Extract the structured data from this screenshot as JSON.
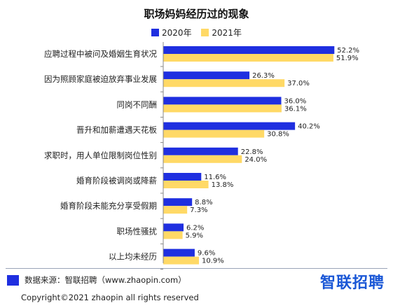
{
  "chart_data": {
    "type": "bar",
    "orientation": "horizontal",
    "title": "职场妈妈经历过的现象",
    "categories": [
      "应聘过程中被问及婚姻生育状况",
      "因为照顾家庭被迫放弃事业发展",
      "同岗不同酬",
      "晋升和加薪遭遇天花板",
      "求职时，用人单位限制岗位性别",
      "婚育阶段被调岗或降薪",
      "婚育阶段未能充分享受假期",
      "职场性骚扰",
      "以上均未经历"
    ],
    "series": [
      {
        "name": "2020年",
        "color": "#1f2fe0",
        "values": [
          52.2,
          26.3,
          36.0,
          40.2,
          22.8,
          11.6,
          8.8,
          6.2,
          9.6
        ],
        "labels": [
          "52.2%",
          "26.3%",
          "36.0%",
          "40.2%",
          "22.8%",
          "11.6%",
          "8.8%",
          "6.2%",
          "9.6%"
        ]
      },
      {
        "name": "2021年",
        "color": "#ffd966",
        "values": [
          51.9,
          37.0,
          36.1,
          30.8,
          24.0,
          13.8,
          7.3,
          5.9,
          10.9
        ],
        "labels": [
          "51.9%",
          "37.0%",
          "36.1%",
          "30.8%",
          "24.0%",
          "13.8%",
          "7.3%",
          "5.9%",
          "10.9%"
        ]
      }
    ],
    "xlim": [
      0,
      60
    ],
    "grid": false,
    "legend_position": "top-center"
  },
  "footer": {
    "source": "数据来源：智联招聘（www.zhaopin.com）",
    "brand": "智联招聘",
    "copyright": "Copyright©2021 zhaopin all rights reserved"
  }
}
